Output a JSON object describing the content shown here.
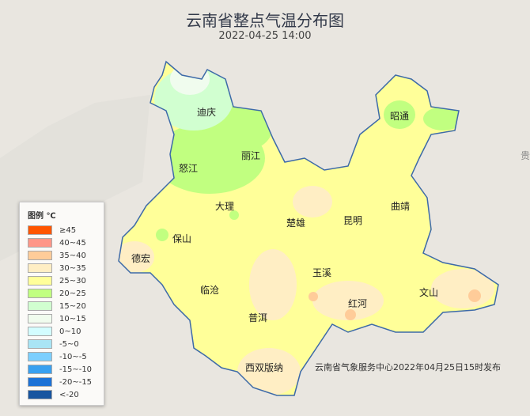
{
  "title": "云南省整点气温分布图",
  "datetime": "2022-04-25 14:00",
  "footer": "云南省气象服务中心2022年04月25日15时发布",
  "neighbor_label": "贵",
  "cities": [
    {
      "name": "迪庆"
    },
    {
      "name": "丽江"
    },
    {
      "name": "怒江"
    },
    {
      "name": "昭通"
    },
    {
      "name": "大理"
    },
    {
      "name": "楚雄"
    },
    {
      "name": "昆明"
    },
    {
      "name": "曲靖"
    },
    {
      "name": "保山"
    },
    {
      "name": "德宏"
    },
    {
      "name": "玉溪"
    },
    {
      "name": "临沧"
    },
    {
      "name": "红河"
    },
    {
      "name": "文山"
    },
    {
      "name": "普洱"
    },
    {
      "name": "西双版纳"
    }
  ],
  "legend": {
    "title": "图例 ℃",
    "items": [
      {
        "label": "≥45",
        "color": "#ff5500"
      },
      {
        "label": "40~45",
        "color": "#ff9688"
      },
      {
        "label": "35~40",
        "color": "#ffcc99"
      },
      {
        "label": "30~35",
        "color": "#ffeec4"
      },
      {
        "label": "25~30",
        "color": "#ffff99"
      },
      {
        "label": "20~25",
        "color": "#c1ff80"
      },
      {
        "label": "15~20",
        "color": "#d1ffd0"
      },
      {
        "label": "10~15",
        "color": "#f0fcee"
      },
      {
        "label": "0~10",
        "color": "#d3fdff"
      },
      {
        "label": "-5~0",
        "color": "#a9e5f5"
      },
      {
        "label": "-10~-5",
        "color": "#7ccffe"
      },
      {
        "label": "-15~-10",
        "color": "#39a0f0"
      },
      {
        "label": "-20~-15",
        "color": "#1d72d6"
      },
      {
        "label": "<-20",
        "color": "#1855a0"
      }
    ]
  }
}
